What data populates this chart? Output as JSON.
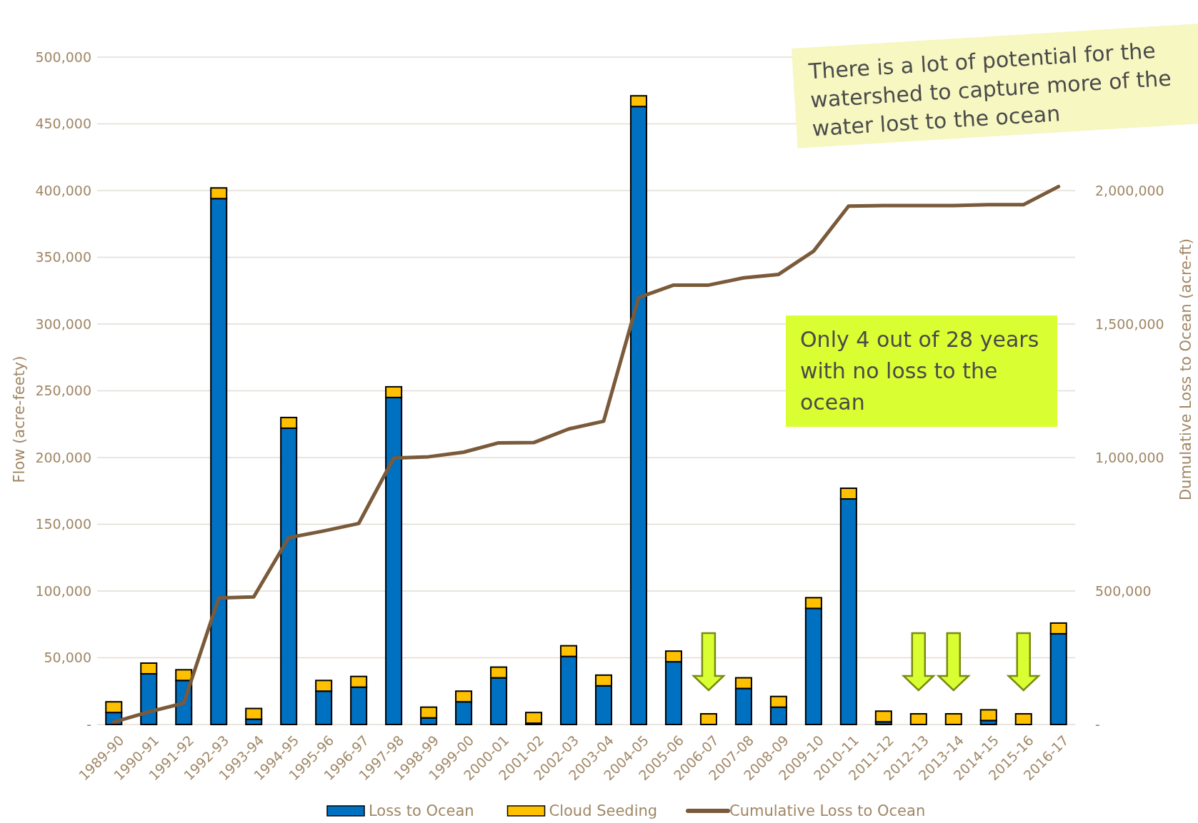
{
  "chart_data": {
    "type": "bar",
    "stacked": true,
    "ylabel": "Flow (acre-feety)",
    "y2label": "Dumulative Loss to Ocean (acre-ft)",
    "categories": [
      "1989-90",
      "1990-91",
      "1991-92",
      "1992-93",
      "1993-94",
      "1994-95",
      "1995-96",
      "1996-97",
      "1997-98",
      "1998-99",
      "1999-00",
      "2000-01",
      "2001-02",
      "2002-03",
      "2003-04",
      "2004-05",
      "2005-06",
      "2006-07",
      "2007-08",
      "2008-09",
      "2009-10",
      "2010-11",
      "2011-12",
      "2012-13",
      "2013-14",
      "2014-15",
      "2015-16",
      "2016-17"
    ],
    "series": [
      {
        "name": "Loss to Ocean",
        "color": "#0070c0",
        "values": [
          9000,
          38000,
          33000,
          394000,
          4000,
          222000,
          25000,
          28000,
          245000,
          5000,
          17000,
          35000,
          1000,
          51000,
          29000,
          463000,
          47000,
          0,
          27000,
          13000,
          87000,
          169000,
          2000,
          0,
          0,
          3000,
          0,
          68000
        ]
      },
      {
        "name": "Cloud Seeding",
        "color": "#ffc000",
        "values": [
          8000,
          8000,
          8000,
          8000,
          8000,
          8000,
          8000,
          8000,
          8000,
          8000,
          8000,
          8000,
          8000,
          8000,
          8000,
          8000,
          8000,
          8000,
          8000,
          8000,
          8000,
          8000,
          8000,
          8000,
          8000,
          8000,
          8000,
          8000
        ]
      },
      {
        "name": "Cumulative Loss to Ocean",
        "type": "line",
        "axis": "y2",
        "color": "#7a5a3a",
        "values": [
          9000,
          47000,
          80000,
          474000,
          478000,
          700000,
          725000,
          753000,
          998000,
          1003000,
          1020000,
          1055000,
          1056000,
          1107000,
          1136000,
          1599000,
          1646000,
          1646000,
          1673000,
          1686000,
          1773000,
          1942000,
          1944000,
          1944000,
          1944000,
          1947000,
          1947000,
          2015000
        ]
      }
    ],
    "ylim": [
      0,
      500000
    ],
    "yticks": [
      {
        "value": 0,
        "label": "-"
      },
      {
        "value": 50000,
        "label": "50,000"
      },
      {
        "value": 100000,
        "label": "100,000"
      },
      {
        "value": 150000,
        "label": "150,000"
      },
      {
        "value": 200000,
        "label": "200,000"
      },
      {
        "value": 250000,
        "label": "250,000"
      },
      {
        "value": 300000,
        "label": "300,000"
      },
      {
        "value": 350000,
        "label": "350,000"
      },
      {
        "value": 400000,
        "label": "400,000"
      },
      {
        "value": 450000,
        "label": "450,000"
      },
      {
        "value": 500000,
        "label": "500,000"
      }
    ],
    "y2lim": [
      0,
      2500000
    ],
    "y2ticks": [
      {
        "value": 0,
        "label": "-"
      },
      {
        "value": 500000,
        "label": "500,000"
      },
      {
        "value": 1000000,
        "label": "1,000,000"
      },
      {
        "value": 1500000,
        "label": "1,500,000"
      },
      {
        "value": 2000000,
        "label": "2,000,000"
      }
    ],
    "grid": "y",
    "legend": "bottom",
    "annotations": [
      "There is a lot of potential for the watershed to capture more of the water lost to the ocean",
      "Only 4 out of 28 years with no loss to the ocean"
    ]
  }
}
